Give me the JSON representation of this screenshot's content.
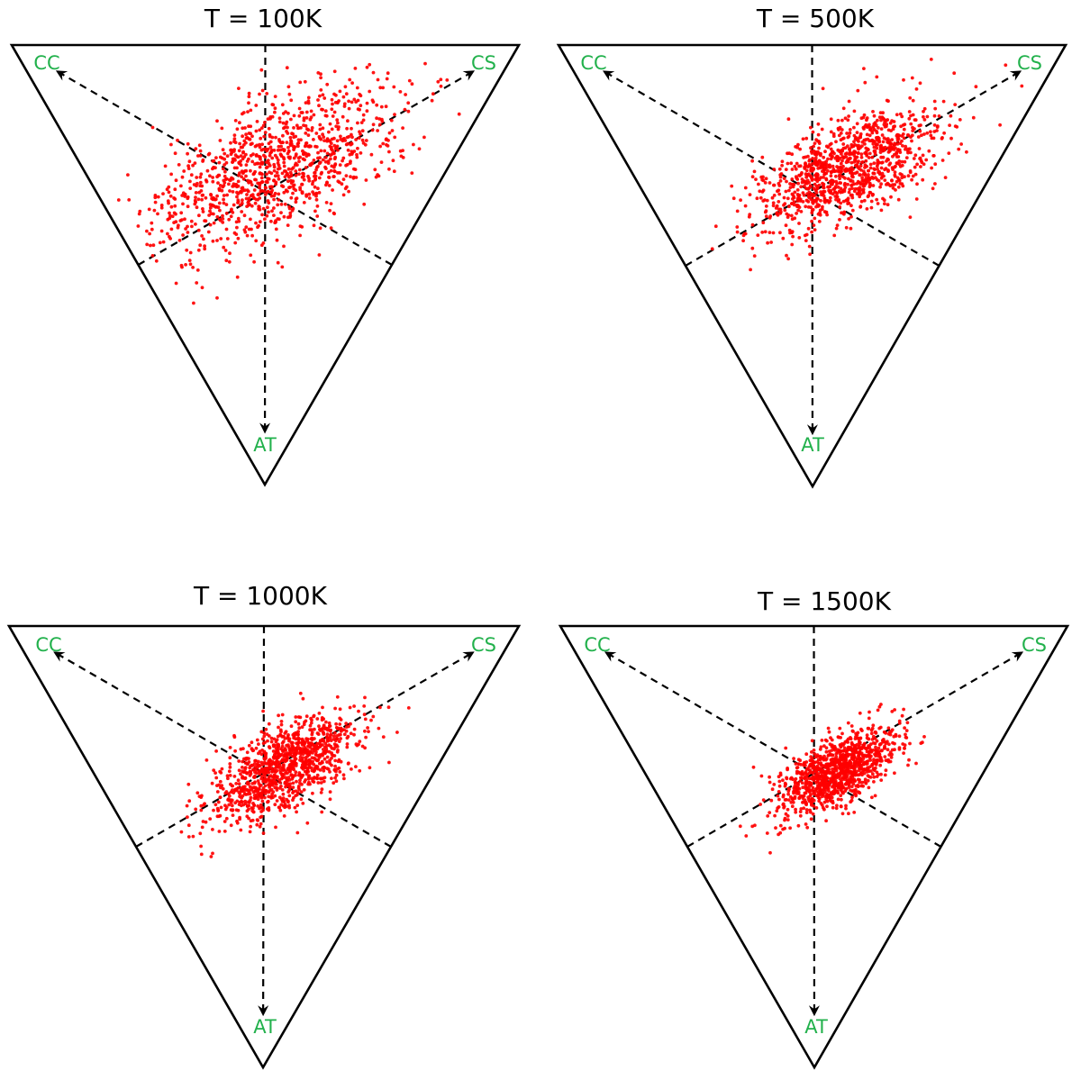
{
  "chart_data": [
    {
      "type": "scatter",
      "subtype": "ternary",
      "title": "T = 100K",
      "vertices": [
        "CC",
        "CS",
        "AT"
      ],
      "point_color": "#ff0000",
      "label_color": "#22b14c",
      "n_points": 1100,
      "distribution": {
        "center": {
          "CC": 0.34,
          "CS": 0.38,
          "AT": 0.28
        },
        "spread": 0.11,
        "elongation_toward": "CS",
        "tail_toward": "CC-AT edge"
      }
    },
    {
      "type": "scatter",
      "subtype": "ternary",
      "title": "T = 500K",
      "vertices": [
        "CC",
        "CS",
        "AT"
      ],
      "point_color": "#ff0000",
      "label_color": "#22b14c",
      "n_points": 1100,
      "distribution": {
        "center": {
          "CC": 0.29,
          "CS": 0.43,
          "AT": 0.28
        },
        "spread": 0.08,
        "elongation_toward": "CS",
        "tail_toward": "CC-AT edge"
      }
    },
    {
      "type": "scatter",
      "subtype": "ternary",
      "title": "T = 1000K",
      "vertices": [
        "CC",
        "CS",
        "AT"
      ],
      "point_color": "#ff0000",
      "label_color": "#22b14c",
      "n_points": 1100,
      "distribution": {
        "center": {
          "CC": 0.3,
          "CS": 0.38,
          "AT": 0.32
        },
        "spread": 0.065,
        "elongation_toward": "CS",
        "tail_toward": "CC-AT edge"
      }
    },
    {
      "type": "scatter",
      "subtype": "ternary",
      "title": "T = 1500K",
      "vertices": [
        "CC",
        "CS",
        "AT"
      ],
      "point_color": "#ff0000",
      "label_color": "#22b14c",
      "n_points": 1100,
      "distribution": {
        "center": {
          "CC": 0.29,
          "CS": 0.38,
          "AT": 0.33
        },
        "spread": 0.055,
        "elongation_toward": "CS",
        "tail_toward": "CC-AT edge"
      }
    }
  ]
}
